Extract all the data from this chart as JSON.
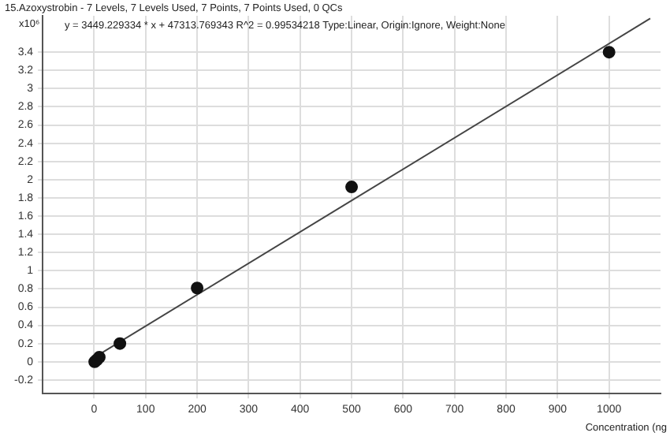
{
  "chart_data": {
    "type": "scatter",
    "title": "15.Azoxystrobin - 7 Levels, 7 Levels Used, 7 Points, 7 Points Used, 0 QCs",
    "annotations": [
      "y = 3449.229334 * x  + 47313.769343 R^2 = 0.99534218 Type:Linear, Origin:Ignore, Weight:None"
    ],
    "ylabel": "x10⁶",
    "xlabel": "Concentration (ng",
    "series": [
      {
        "color": "#111111",
        "x": [
          1,
          5,
          10,
          50,
          200,
          500,
          1000
        ],
        "values": [
          0.0,
          0.02,
          0.05,
          0.2,
          0.81,
          1.92,
          3.4
        ]
      },
      {
        "type": "line",
        "color": "#444444",
        "x": [
          -5,
          1080
        ],
        "values": [
          0.03,
          3.77
        ],
        "marker": "none"
      }
    ],
    "xlim": [
      -100,
      1100
    ],
    "xticks": [
      0,
      100,
      200,
      300,
      400,
      500,
      600,
      700,
      800,
      900,
      1000
    ],
    "ylim": [
      -0.35,
      3.8
    ],
    "yticks": [
      -0.2,
      0,
      0.2,
      0.4,
      0.6,
      0.8,
      1,
      1.2,
      1.4,
      1.6,
      1.8,
      2,
      2.2,
      2.4,
      2.6,
      2.8,
      3,
      3.2,
      3.4
    ],
    "grid": true,
    "legend": false,
    "marker": "circle"
  }
}
